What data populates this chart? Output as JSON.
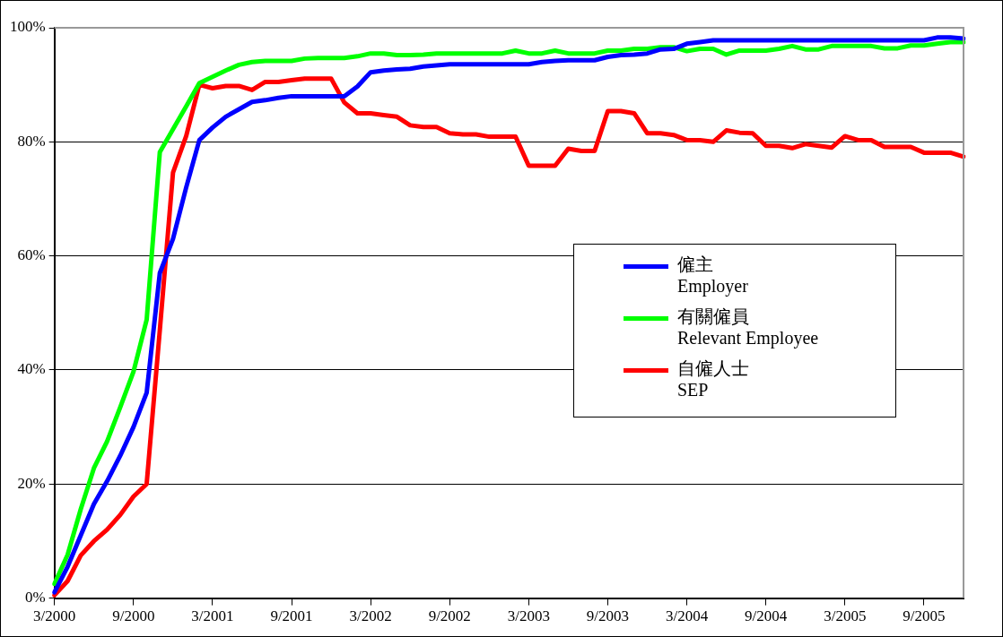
{
  "chart_data": {
    "type": "line",
    "categories": [
      "3/2000",
      null,
      null,
      null,
      null,
      null,
      "9/2000",
      null,
      null,
      null,
      null,
      null,
      "3/2001",
      null,
      null,
      null,
      null,
      null,
      "9/2001",
      null,
      null,
      null,
      null,
      null,
      "3/2002",
      null,
      null,
      null,
      null,
      null,
      "9/2002",
      null,
      null,
      null,
      null,
      null,
      "3/2003",
      null,
      null,
      null,
      null,
      null,
      "9/2003",
      null,
      null,
      null,
      null,
      null,
      "3/2004",
      null,
      null,
      null,
      null,
      null,
      "9/2004",
      null,
      null,
      null,
      null,
      null,
      "3/2005",
      null,
      null,
      null,
      null,
      null,
      "9/2005",
      null,
      null,
      null
    ],
    "series": [
      {
        "name": "僱主\nEmployer",
        "color": "#0000ff",
        "values": [
          1,
          5.5,
          11,
          16.5,
          20.5,
          25,
          30,
          36,
          57,
          63,
          72,
          80.3,
          82.5,
          84.4,
          85.7,
          87,
          87.3,
          87.7,
          88,
          88,
          88,
          88,
          88,
          89.7,
          92.2,
          92.5,
          92.7,
          92.8,
          93.2,
          93.4,
          93.6,
          93.6,
          93.6,
          93.6,
          93.6,
          93.6,
          93.6,
          94,
          94.2,
          94.3,
          94.3,
          94.3,
          94.9,
          95.2,
          95.3,
          95.5,
          96.2,
          96.3,
          97.2,
          97.5,
          97.8,
          97.8,
          97.8,
          97.8,
          97.8,
          97.8,
          97.8,
          97.8,
          97.8,
          97.8,
          97.8,
          97.8,
          97.8,
          97.8,
          97.8,
          97.8,
          97.8,
          98.3,
          98.3,
          98.1
        ]
      },
      {
        "name": "有關僱員\nRelevant Employee",
        "color": "#00ff00",
        "values": [
          2.5,
          7.6,
          15.6,
          22.8,
          27.5,
          33.5,
          39.7,
          48.8,
          78.2,
          82.2,
          86.2,
          90.3,
          91.4,
          92.5,
          93.5,
          94,
          94.2,
          94.2,
          94.2,
          94.6,
          94.7,
          94.7,
          94.7,
          95,
          95.5,
          95.5,
          95.2,
          95.2,
          95.3,
          95.5,
          95.5,
          95.5,
          95.5,
          95.5,
          95.5,
          96,
          95.5,
          95.5,
          96,
          95.5,
          95.5,
          95.5,
          96,
          96,
          96.3,
          96.3,
          96.6,
          96.6,
          95.9,
          96.3,
          96.3,
          95.3,
          96,
          96,
          96,
          96.3,
          96.8,
          96.2,
          96.2,
          96.8,
          96.8,
          96.8,
          96.8,
          96.4,
          96.4,
          96.9,
          96.9,
          97.2,
          97.5,
          97.5
        ]
      },
      {
        "name": "自僱人士\nSEP",
        "color": "#ff0000",
        "values": [
          0.5,
          3,
          7.5,
          10,
          12,
          14.6,
          17.8,
          20,
          47,
          74.6,
          81,
          90,
          89.4,
          89.8,
          89.8,
          89.1,
          90.5,
          90.5,
          90.8,
          91.1,
          91.1,
          91.1,
          86.9,
          85,
          85,
          84.7,
          84.4,
          82.9,
          82.6,
          82.6,
          81.5,
          81.3,
          81.3,
          80.9,
          80.9,
          80.9,
          75.8,
          75.8,
          75.8,
          78.8,
          78.4,
          78.4,
          85.4,
          85.4,
          85,
          81.5,
          81.5,
          81.2,
          80.3,
          80.3,
          80,
          82,
          81.6,
          81.5,
          79.3,
          79.3,
          78.9,
          79.6,
          79.3,
          79,
          81,
          80.3,
          80.3,
          79.1,
          79.1,
          79.1,
          78.1,
          78.1,
          78.1,
          77.4
        ]
      }
    ],
    "ylim": [
      0,
      100
    ],
    "yticks": [
      {
        "value": 0,
        "label": "0%"
      },
      {
        "value": 20,
        "label": "20%"
      },
      {
        "value": 40,
        "label": "40%"
      },
      {
        "value": 60,
        "label": "60%"
      },
      {
        "value": 80,
        "label": "80%"
      },
      {
        "value": 100,
        "label": "100%"
      }
    ],
    "grid": "y",
    "legend": "right",
    "marker": "none",
    "line_style": "solid"
  }
}
